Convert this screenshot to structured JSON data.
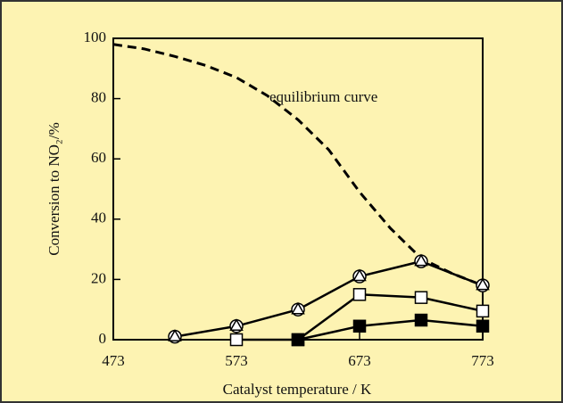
{
  "chart_data": {
    "type": "line",
    "xlabel": "Catalyst temperature / K",
    "ylabel": "Conversion to NO₂/%",
    "annotation": "equilibrium curve",
    "xlim": [
      473,
      773
    ],
    "xticks": [
      473,
      573,
      673,
      773
    ],
    "ylim": [
      0,
      100
    ],
    "yticks": [
      0,
      20,
      40,
      60,
      80,
      100
    ],
    "background": "#fdf3b2",
    "series": [
      {
        "color": "#000000",
        "dashed": true,
        "marker": "none",
        "x": [
          473,
          498,
          523,
          548,
          573,
          598,
          623,
          648,
          673,
          698,
          723,
          748,
          773
        ],
        "values": [
          98,
          96.5,
          94,
          91,
          87,
          81,
          73,
          63,
          49,
          37,
          27,
          22,
          18
        ]
      },
      {
        "color": "#000000",
        "dashed": false,
        "marker": "circle-triangle",
        "x": [
          523,
          573,
          623,
          673,
          723,
          773
        ],
        "values": [
          1,
          4.5,
          10,
          21,
          26,
          18
        ]
      },
      {
        "color": "#000000",
        "dashed": false,
        "marker": "open-square",
        "x": [
          573,
          623,
          673,
          723,
          773
        ],
        "values": [
          0,
          0,
          15,
          14,
          9.5
        ]
      },
      {
        "color": "#000000",
        "dashed": false,
        "marker": "filled-square",
        "x": [
          623,
          673,
          723,
          773
        ],
        "values": [
          0,
          4.5,
          6.5,
          4.5
        ]
      }
    ]
  }
}
